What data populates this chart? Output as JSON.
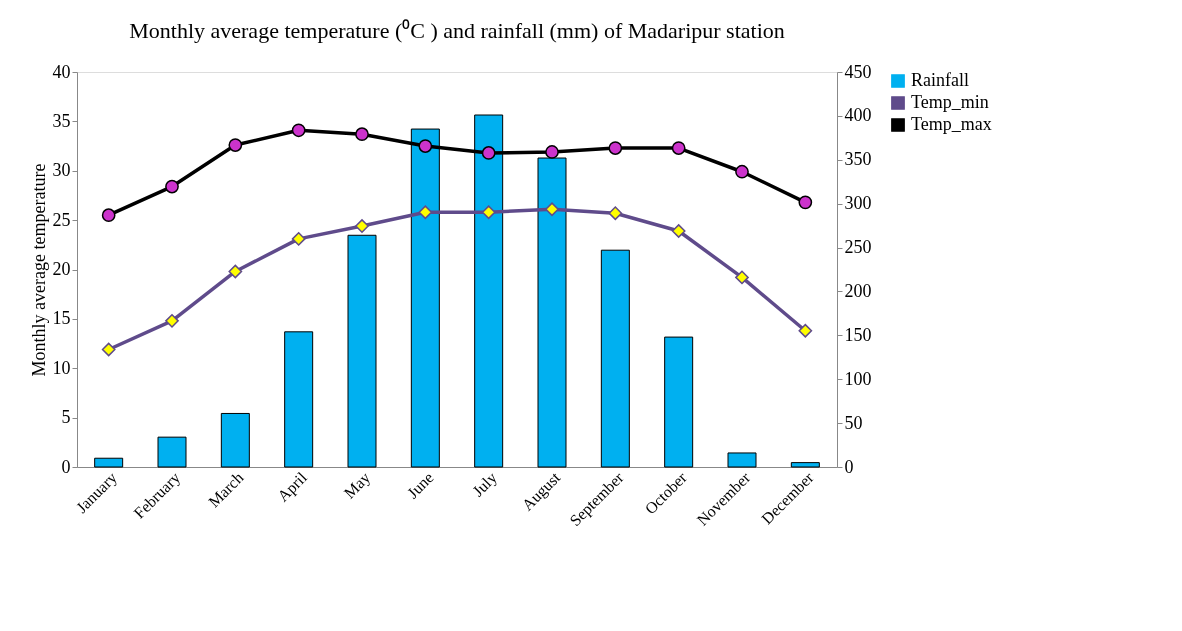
{
  "chart_data": {
    "type": "line",
    "title": "Monthly average temperature (⁰C ) and rainfall (mm) of Madaripur station",
    "ylabel": "Monthly average temperature",
    "categories": [
      "January",
      "February",
      "March",
      "April",
      "May",
      "June",
      "July",
      "August",
      "September",
      "October",
      "November",
      "December"
    ],
    "series": [
      {
        "name": "Rainfall",
        "type": "bar",
        "axis": "y2",
        "color": "#00b0f0",
        "values": [
          10,
          34,
          61,
          154,
          264,
          385,
          401,
          352,
          247,
          148,
          16,
          5
        ]
      },
      {
        "name": "Temp_min",
        "color": "#5f4b8b",
        "marker": "diamond",
        "values": [
          11.9,
          14.8,
          19.8,
          23.1,
          24.4,
          25.8,
          25.8,
          26.1,
          25.7,
          23.9,
          19.2,
          13.8
        ]
      },
      {
        "name": "Temp_max",
        "color": "#000000",
        "marker": "circle",
        "values": [
          25.5,
          28.4,
          32.6,
          34.1,
          33.7,
          32.5,
          31.8,
          31.9,
          32.3,
          32.3,
          29.9,
          26.8
        ]
      }
    ],
    "ylim": [
      0,
      40
    ],
    "yticks": [
      0,
      5,
      10,
      15,
      20,
      25,
      30,
      35,
      40
    ],
    "y2lim": [
      0,
      450
    ],
    "y2ticks": [
      0,
      50,
      100,
      150,
      200,
      250,
      300,
      350,
      400,
      450
    ],
    "legend": "right",
    "grid": false
  }
}
